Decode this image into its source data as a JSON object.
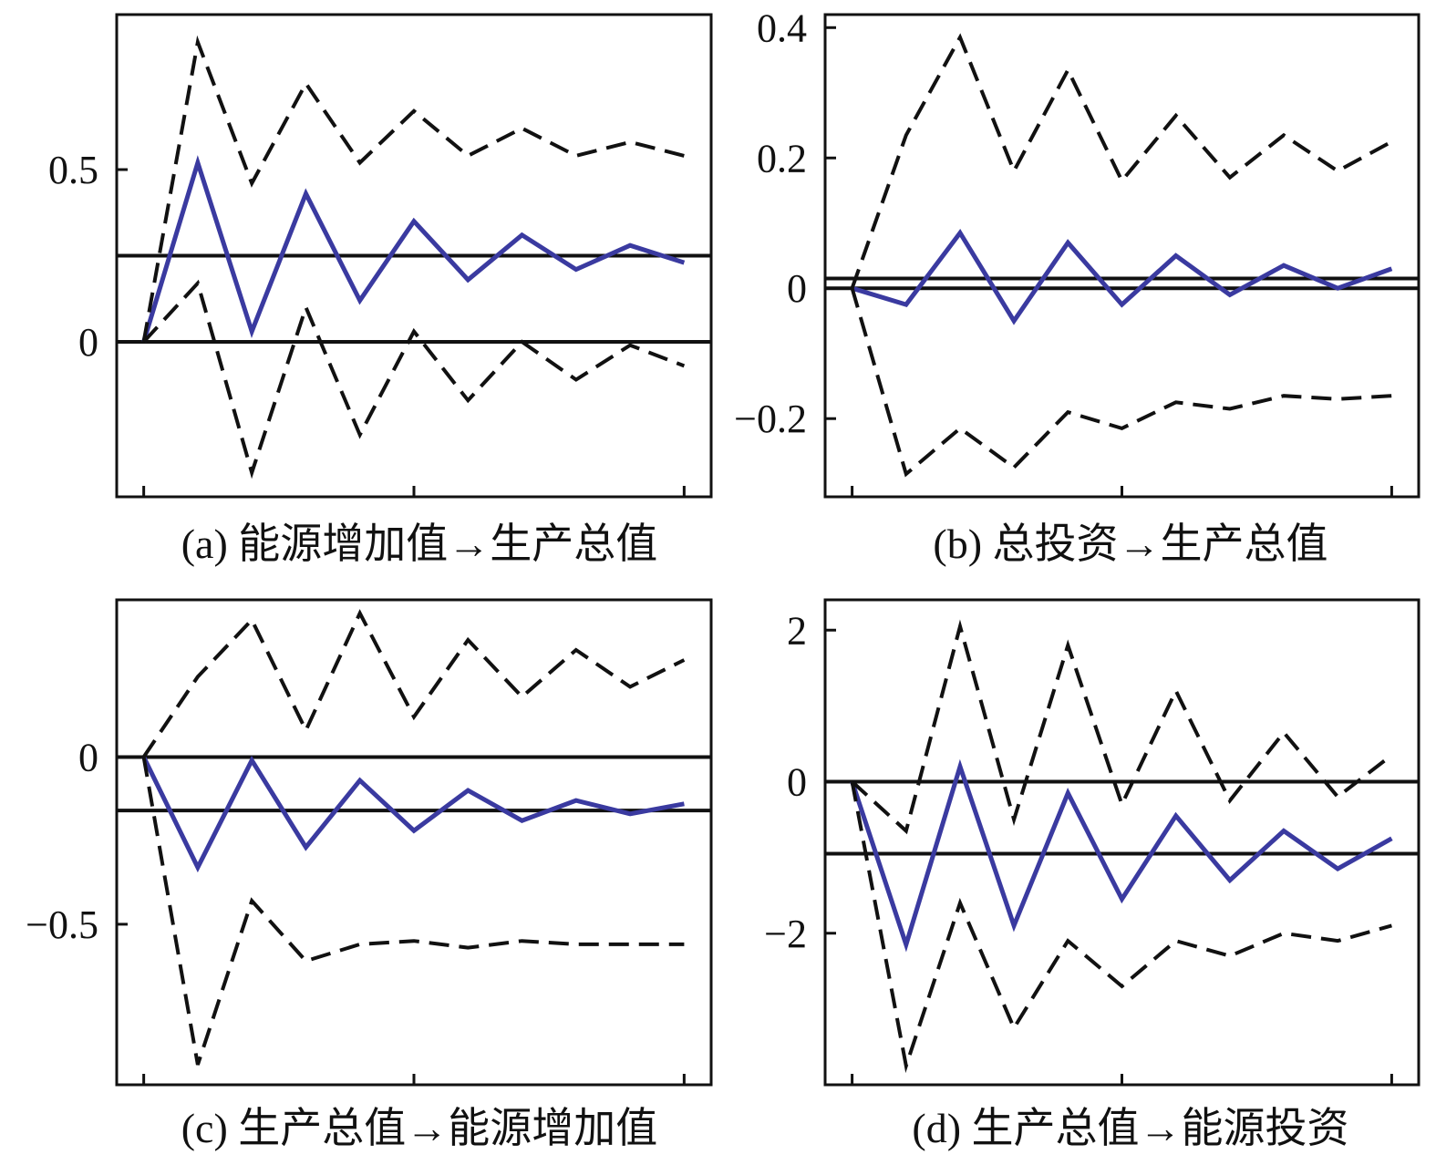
{
  "colors": {
    "response": "#3a3aa0",
    "band": "#111111",
    "axis": "#111111",
    "reference": "#111111"
  },
  "chart_data": [
    {
      "type": "line",
      "title": "(a) 能源增加值→生产总值",
      "x": [
        0,
        1,
        2,
        3,
        4,
        5,
        6,
        7,
        8,
        9,
        10
      ],
      "xlim": [
        -0.5,
        10.5
      ],
      "ylim": [
        -0.45,
        0.95
      ],
      "yticks": [
        0,
        0.5
      ],
      "ytick_labels": [
        "0",
        "0.5"
      ],
      "xticks": [
        0,
        5,
        10
      ],
      "hlines": [
        0,
        0.25
      ],
      "series": [
        {
          "role": "response",
          "style": "solid",
          "values": [
            0,
            0.52,
            0.03,
            0.43,
            0.12,
            0.35,
            0.18,
            0.31,
            0.21,
            0.28,
            0.23
          ]
        },
        {
          "role": "upper",
          "style": "dashed",
          "values": [
            0,
            0.87,
            0.46,
            0.75,
            0.52,
            0.67,
            0.54,
            0.62,
            0.54,
            0.58,
            0.54
          ]
        },
        {
          "role": "lower",
          "style": "dashed",
          "values": [
            0,
            0.17,
            -0.38,
            0.1,
            -0.27,
            0.03,
            -0.17,
            0.0,
            -0.11,
            -0.01,
            -0.07
          ]
        }
      ]
    },
    {
      "type": "line",
      "title": "(b) 总投资→生产总值",
      "x": [
        0,
        1,
        2,
        3,
        4,
        5,
        6,
        7,
        8,
        9,
        10
      ],
      "xlim": [
        -0.5,
        10.5
      ],
      "ylim": [
        -0.32,
        0.42
      ],
      "yticks": [
        -0.2,
        0,
        0.2,
        0.4
      ],
      "ytick_labels": [
        "−0.2",
        "0",
        "0.2",
        "0.4"
      ],
      "xticks": [
        0,
        5,
        10
      ],
      "hlines": [
        0,
        0.015
      ],
      "series": [
        {
          "role": "response",
          "style": "solid",
          "values": [
            0,
            -0.025,
            0.085,
            -0.05,
            0.07,
            -0.025,
            0.05,
            -0.01,
            0.035,
            0.0,
            0.03
          ]
        },
        {
          "role": "upper",
          "style": "dashed",
          "values": [
            0,
            0.235,
            0.385,
            0.18,
            0.335,
            0.165,
            0.265,
            0.17,
            0.235,
            0.18,
            0.225
          ]
        },
        {
          "role": "lower",
          "style": "dashed",
          "values": [
            0,
            -0.285,
            -0.215,
            -0.275,
            -0.19,
            -0.215,
            -0.175,
            -0.185,
            -0.165,
            -0.17,
            -0.165
          ]
        }
      ]
    },
    {
      "type": "line",
      "title": "(c) 生产总值→能源增加值",
      "x": [
        0,
        1,
        2,
        3,
        4,
        5,
        6,
        7,
        8,
        9,
        10
      ],
      "xlim": [
        -0.5,
        10.5
      ],
      "ylim": [
        -0.98,
        0.47
      ],
      "yticks": [
        -0.5,
        0
      ],
      "ytick_labels": [
        "−0.5",
        "0"
      ],
      "xticks": [
        0,
        5,
        10
      ],
      "hlines": [
        0,
        -0.16
      ],
      "series": [
        {
          "role": "response",
          "style": "solid",
          "values": [
            0,
            -0.33,
            -0.01,
            -0.27,
            -0.07,
            -0.22,
            -0.1,
            -0.19,
            -0.13,
            -0.17,
            -0.14
          ]
        },
        {
          "role": "upper",
          "style": "dashed",
          "values": [
            0,
            0.24,
            0.41,
            0.08,
            0.43,
            0.12,
            0.35,
            0.18,
            0.32,
            0.21,
            0.29
          ]
        },
        {
          "role": "lower",
          "style": "dashed",
          "values": [
            0,
            -0.92,
            -0.43,
            -0.61,
            -0.56,
            -0.55,
            -0.57,
            -0.55,
            -0.56,
            -0.56,
            -0.56
          ]
        }
      ]
    },
    {
      "type": "line",
      "title": "(d) 生产总值→能源投资",
      "x": [
        0,
        1,
        2,
        3,
        4,
        5,
        6,
        7,
        8,
        9,
        10
      ],
      "xlim": [
        -0.5,
        10.5
      ],
      "ylim": [
        -4.0,
        2.4
      ],
      "yticks": [
        -2,
        0,
        2
      ],
      "ytick_labels": [
        "−2",
        "0",
        "2"
      ],
      "xticks": [
        0,
        5,
        10
      ],
      "hlines": [
        0,
        -0.95
      ],
      "series": [
        {
          "role": "response",
          "style": "solid",
          "values": [
            0,
            -2.15,
            0.2,
            -1.9,
            -0.15,
            -1.55,
            -0.45,
            -1.3,
            -0.65,
            -1.15,
            -0.75
          ]
        },
        {
          "role": "upper",
          "style": "dashed",
          "values": [
            0,
            -0.65,
            2.05,
            -0.5,
            1.8,
            -0.3,
            1.2,
            -0.25,
            0.65,
            -0.2,
            0.35
          ]
        },
        {
          "role": "lower",
          "style": "dashed",
          "values": [
            0,
            -3.75,
            -1.6,
            -3.25,
            -2.1,
            -2.7,
            -2.1,
            -2.3,
            -2.0,
            -2.1,
            -1.9
          ]
        }
      ]
    }
  ]
}
